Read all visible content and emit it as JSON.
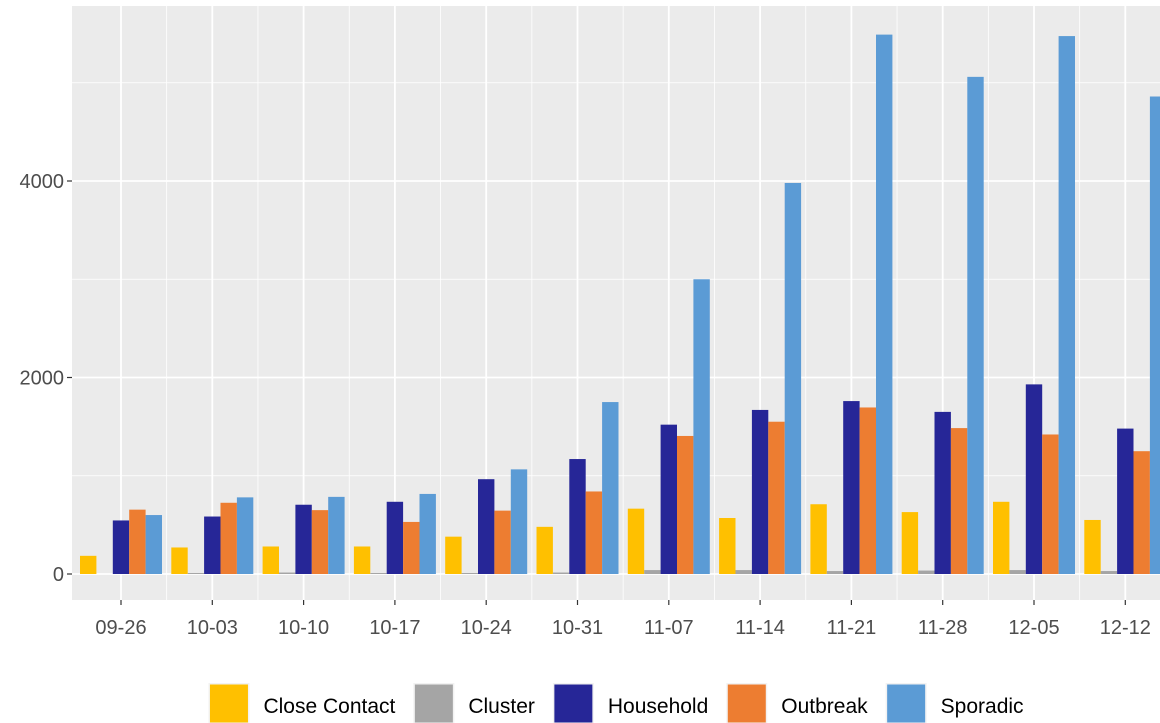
{
  "chart_data": {
    "type": "bar",
    "title": "",
    "xlabel": "",
    "ylabel": "",
    "categories": [
      "09-26",
      "10-03",
      "10-10",
      "10-17",
      "10-24",
      "10-31",
      "11-07",
      "11-14",
      "11-21",
      "11-28",
      "12-05",
      "12-12"
    ],
    "ylim": [
      -280,
      5600
    ],
    "yticks": [
      0,
      2000,
      4000
    ],
    "ytick_labels": [
      "0",
      "2000",
      "4000"
    ],
    "grid": true,
    "legend_position": "bottom",
    "series": [
      {
        "name": "Close Contact",
        "color": "#FFC000",
        "values": [
          185,
          270,
          280,
          280,
          380,
          480,
          665,
          570,
          710,
          630,
          735,
          550
        ]
      },
      {
        "name": "Cluster",
        "color": "#A5A5A5",
        "values": [
          0,
          10,
          15,
          10,
          10,
          15,
          40,
          40,
          30,
          35,
          40,
          30
        ]
      },
      {
        "name": "Household",
        "color": "#262697",
        "values": [
          545,
          585,
          705,
          735,
          965,
          1170,
          1520,
          1670,
          1760,
          1650,
          1930,
          1480
        ]
      },
      {
        "name": "Outbreak",
        "color": "#ED7D31",
        "values": [
          655,
          725,
          650,
          530,
          645,
          840,
          1405,
          1550,
          1695,
          1485,
          1420,
          1250
        ]
      },
      {
        "name": "Sporadic",
        "color": "#5B9BD5",
        "values": [
          600,
          780,
          785,
          815,
          1065,
          1750,
          3000,
          3980,
          5490,
          5060,
          5475,
          4860
        ]
      }
    ]
  }
}
